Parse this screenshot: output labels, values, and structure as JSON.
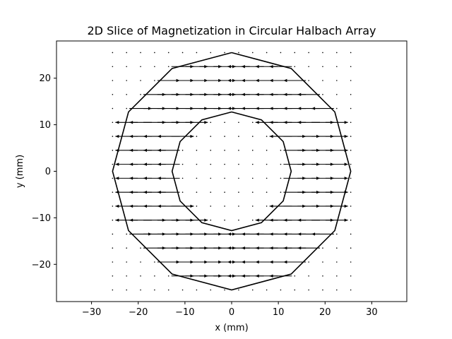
{
  "chart_data": {
    "type": "quiver",
    "title": "2D Slice of Magnetization in Circular Halbach Array",
    "xlabel": "x (mm)",
    "ylabel": "y (mm)",
    "xlim": [
      -37.5,
      37.5
    ],
    "ylim": [
      -28,
      28
    ],
    "xticks": [
      -30,
      -20,
      -10,
      0,
      10,
      20,
      30
    ],
    "yticks": [
      -20,
      -10,
      0,
      10,
      20
    ],
    "xtick_labels": [
      "−30",
      "−20",
      "−10",
      "0",
      "10",
      "20",
      "30"
    ],
    "ytick_labels": [
      "−20",
      "−10",
      "0",
      "10",
      "20"
    ],
    "grid": false,
    "legend": "none",
    "outer_radius_mm": 25.5,
    "inner_radius_mm": 12.75,
    "polygon_sides": 12,
    "grid_spacing_mm": 3,
    "grid_range_mm": [
      -25.5,
      25.5
    ],
    "vector_field": "x-magnetization, direction alternating by ring segment (Halbach pattern)",
    "line_color": "#000000"
  }
}
